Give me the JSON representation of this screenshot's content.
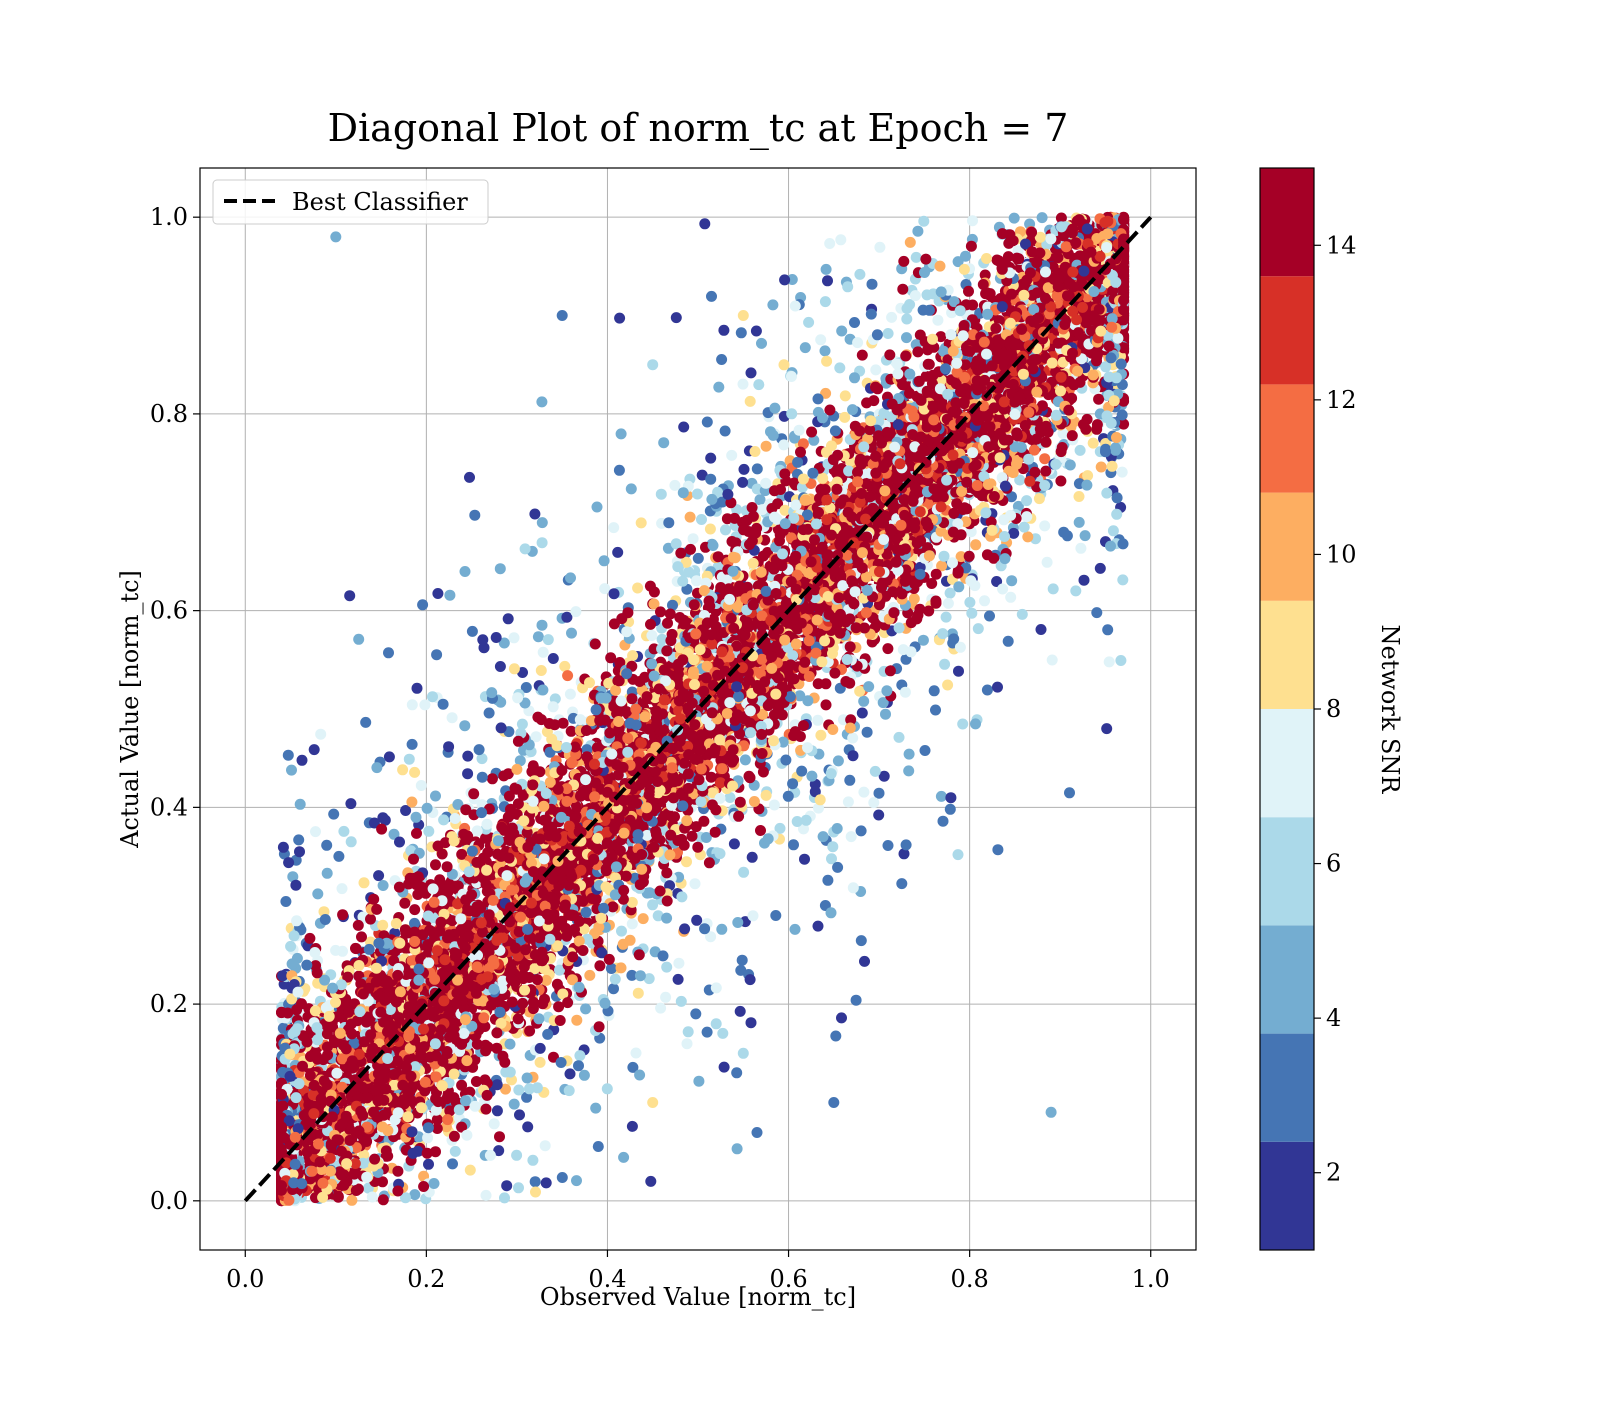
{
  "chart_data": {
    "type": "scatter",
    "title": "Diagonal Plot of norm_tc at Epoch = 7",
    "xlabel": "Observed Value [norm_tc]",
    "ylabel": "Actual Value [norm_tc]",
    "xlim": [
      -0.05,
      1.05
    ],
    "ylim": [
      -0.05,
      1.05
    ],
    "xticks": [
      0.0,
      0.2,
      0.4,
      0.6,
      0.8,
      1.0
    ],
    "yticks": [
      0.0,
      0.2,
      0.4,
      0.6,
      0.8,
      1.0
    ],
    "xtick_labels": [
      "0.0",
      "0.2",
      "0.4",
      "0.6",
      "0.8",
      "1.0"
    ],
    "ytick_labels": [
      "0.0",
      "0.2",
      "0.4",
      "0.6",
      "0.8",
      "1.0"
    ],
    "grid": true,
    "legend": {
      "placement": "upper-left",
      "entries": [
        {
          "label": "Best Classifier",
          "style": "dashed",
          "color": "#000000"
        }
      ]
    },
    "reference_line": {
      "name": "Best Classifier",
      "x": [
        0.0,
        1.0
      ],
      "y": [
        0.0,
        1.0
      ]
    },
    "colorbar": {
      "label": "Network SNR",
      "range": [
        1,
        15
      ],
      "ticks": [
        2,
        4,
        6,
        8,
        10,
        12,
        14
      ],
      "tick_labels": [
        "2",
        "4",
        "6",
        "8",
        "10",
        "12",
        "14"
      ],
      "levels": [
        {
          "from": 1,
          "to": 2.4,
          "color": "#313695"
        },
        {
          "from": 2.4,
          "to": 3.8,
          "color": "#4575b4"
        },
        {
          "from": 3.8,
          "to": 5.2,
          "color": "#74add1"
        },
        {
          "from": 5.2,
          "to": 6.6,
          "color": "#abd9e9"
        },
        {
          "from": 6.6,
          "to": 8.0,
          "color": "#e0f3f8"
        },
        {
          "from": 8.0,
          "to": 9.4,
          "color": "#fee090"
        },
        {
          "from": 9.4,
          "to": 10.8,
          "color": "#fdae61"
        },
        {
          "from": 10.8,
          "to": 12.2,
          "color": "#f46d43"
        },
        {
          "from": 12.2,
          "to": 13.6,
          "color": "#d73027"
        },
        {
          "from": 13.6,
          "to": 15,
          "color": "#a50026"
        }
      ]
    },
    "scatter_description": {
      "x_range_min_at_y0": 0.04,
      "x_range_max_at_y1": 0.97,
      "high_snr_band_halfwidth": 0.14,
      "sample_points": [
        {
          "x": 0.5,
          "y": 0.5,
          "snr": 15
        },
        {
          "x": 0.3,
          "y": 0.3,
          "snr": 15
        },
        {
          "x": 0.7,
          "y": 0.7,
          "snr": 15
        },
        {
          "x": 0.35,
          "y": 0.9,
          "snr": 3
        },
        {
          "x": 0.65,
          "y": 0.1,
          "snr": 3
        },
        {
          "x": 0.45,
          "y": 0.85,
          "snr": 6
        },
        {
          "x": 0.55,
          "y": 0.15,
          "snr": 6
        },
        {
          "x": 0.55,
          "y": 0.9,
          "snr": 9
        },
        {
          "x": 0.45,
          "y": 0.1,
          "snr": 9
        },
        {
          "x": 0.1,
          "y": 0.98,
          "snr": 5
        },
        {
          "x": 0.89,
          "y": 0.09,
          "snr": 5
        }
      ]
    }
  }
}
